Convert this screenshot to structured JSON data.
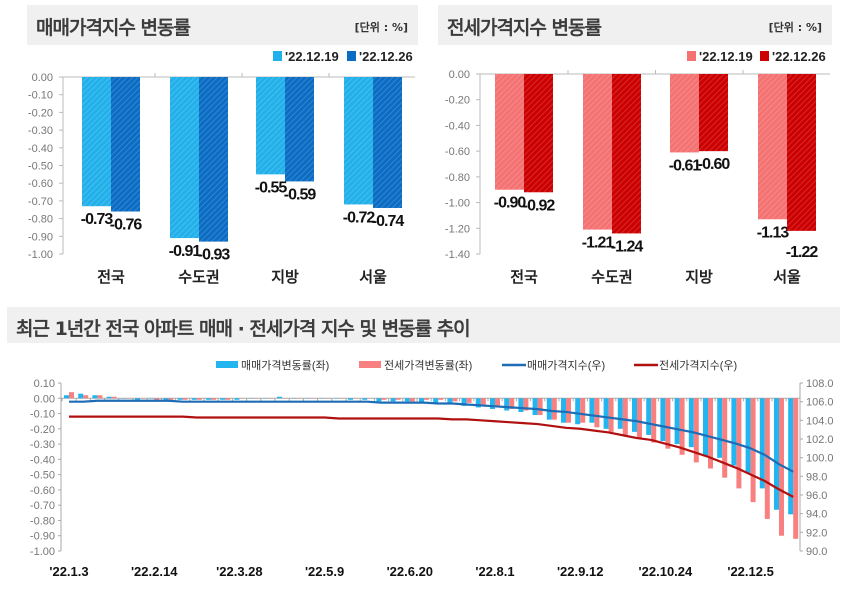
{
  "chart_data": [
    {
      "type": "bar",
      "title": "매매가격지수 변동률",
      "unit": "[단위 : %]",
      "categories": [
        "전국",
        "수도권",
        "지방",
        "서울"
      ],
      "series": [
        {
          "name": "'22.12.19",
          "values": [
            -0.73,
            -0.91,
            -0.55,
            -0.72
          ],
          "color": "#22b0ea"
        },
        {
          "name": "'22.12.26",
          "values": [
            -0.76,
            -0.93,
            -0.59,
            -0.74
          ],
          "color": "#0b6cc4"
        }
      ],
      "data_labels": [
        [
          "-0.73",
          "-0.91",
          "-0.55",
          "-0.72"
        ],
        [
          "-0.76",
          "-0.93",
          "-0.59",
          "-0.74"
        ]
      ],
      "ylim": [
        -1.0,
        0.0
      ],
      "yticks": [
        "0.00",
        "-0.10",
        "-0.20",
        "-0.30",
        "-0.40",
        "-0.50",
        "-0.60",
        "-0.70",
        "-0.80",
        "-0.90",
        "-1.00"
      ],
      "legend": "top-right",
      "grid": false
    },
    {
      "type": "bar",
      "title": "전세가격지수 변동률",
      "unit": "[단위 : %]",
      "categories": [
        "전국",
        "수도권",
        "지방",
        "서울"
      ],
      "series": [
        {
          "name": "'22.12.19",
          "values": [
            -0.9,
            -1.21,
            -0.61,
            -1.13
          ],
          "color": "#f47272"
        },
        {
          "name": "'22.12.26",
          "values": [
            -0.92,
            -1.24,
            -0.6,
            -1.22
          ],
          "color": "#cc0000"
        }
      ],
      "data_labels": [
        [
          "-0.90",
          "-1.21",
          "-0.61",
          "-1.13"
        ],
        [
          "-0.92",
          "-1.24",
          "-0.60",
          "-1.22"
        ]
      ],
      "ylim": [
        -1.4,
        0.0
      ],
      "yticks": [
        "0.00",
        "-0.20",
        "-0.40",
        "-0.60",
        "-0.80",
        "-1.00",
        "-1.20",
        "-1.40"
      ],
      "legend": "top-right",
      "grid": false
    },
    {
      "type": "bar+line",
      "title": "최근 1년간 전국 아파트 매매 · 전세가격 지수 및 변동률 추이",
      "x_ticklabels": [
        "'22.1.3",
        "'22.2.14",
        "'22.3.28",
        "'22.5.9",
        "'22.6.20",
        "'22.8.1",
        "'22.9.12",
        "'22.10.24",
        "'22.12.5"
      ],
      "x_tick_every_weeks": 6,
      "ylim_left": [
        -1.0,
        0.1
      ],
      "yticks_left": [
        "0.10",
        "0.00",
        "-0.10",
        "-0.20",
        "-0.30",
        "-0.40",
        "-0.50",
        "-0.60",
        "-0.70",
        "-0.80",
        "-0.90",
        "-1.00"
      ],
      "ylim_right": [
        90.0,
        108.0
      ],
      "yticks_right": [
        "108.0",
        "106.0",
        "104.0",
        "102.0",
        "100.0",
        "98.0",
        "96.0",
        "94.0",
        "92.0",
        "90.0"
      ],
      "legend": "top",
      "series": [
        {
          "name": "매매가격변동률(좌)",
          "type": "bar",
          "axis": "left",
          "color": "#22b5f0",
          "values": [
            0.02,
            0.03,
            0.02,
            0.01,
            0.0,
            -0.01,
            0.0,
            -0.01,
            -0.01,
            -0.01,
            -0.01,
            -0.01,
            -0.01,
            0.0,
            0.0,
            0.01,
            0.0,
            0.0,
            0.0,
            0.0,
            -0.01,
            -0.01,
            -0.02,
            -0.02,
            -0.02,
            -0.03,
            -0.03,
            -0.04,
            -0.05,
            -0.06,
            -0.07,
            -0.08,
            -0.09,
            -0.11,
            -0.14,
            -0.16,
            -0.17,
            -0.16,
            -0.2,
            -0.2,
            -0.22,
            -0.24,
            -0.28,
            -0.3,
            -0.32,
            -0.38,
            -0.39,
            -0.44,
            -0.49,
            -0.59,
            -0.73,
            -0.76
          ]
        },
        {
          "name": "전세가격변동률(좌)",
          "type": "bar",
          "axis": "left",
          "color": "#f88080",
          "values": [
            0.04,
            0.02,
            0.02,
            0.01,
            0.0,
            0.0,
            -0.01,
            -0.01,
            -0.01,
            -0.01,
            -0.01,
            -0.01,
            0.0,
            0.0,
            0.0,
            0.0,
            0.0,
            0.0,
            0.0,
            0.0,
            0.0,
            0.0,
            -0.01,
            -0.01,
            -0.02,
            -0.01,
            -0.01,
            -0.02,
            -0.03,
            -0.04,
            -0.05,
            -0.07,
            -0.08,
            -0.11,
            -0.14,
            -0.16,
            -0.16,
            -0.19,
            -0.22,
            -0.24,
            -0.26,
            -0.29,
            -0.33,
            -0.37,
            -0.42,
            -0.46,
            -0.52,
            -0.59,
            -0.68,
            -0.79,
            -0.9,
            -0.92
          ]
        },
        {
          "name": "매매가격지수(우)",
          "type": "line",
          "axis": "right",
          "color": "#1e6cb5",
          "values": [
            106.0,
            106.0,
            106.1,
            106.1,
            106.1,
            106.1,
            106.1,
            106.1,
            106.0,
            106.0,
            106.0,
            106.0,
            106.0,
            106.0,
            106.0,
            106.0,
            106.0,
            106.0,
            106.0,
            106.0,
            106.0,
            106.0,
            105.9,
            105.9,
            105.9,
            105.9,
            105.8,
            105.8,
            105.7,
            105.6,
            105.5,
            105.4,
            105.3,
            105.2,
            105.0,
            104.9,
            104.7,
            104.5,
            104.3,
            104.1,
            103.9,
            103.6,
            103.3,
            103.0,
            102.7,
            102.3,
            101.9,
            101.5,
            101.0,
            100.3,
            99.3,
            98.5
          ]
        },
        {
          "name": "전세가격지수(우)",
          "type": "line",
          "axis": "right",
          "color": "#b01010",
          "values": [
            104.4,
            104.4,
            104.4,
            104.4,
            104.4,
            104.4,
            104.4,
            104.4,
            104.4,
            104.3,
            104.3,
            104.3,
            104.3,
            104.3,
            104.3,
            104.3,
            104.3,
            104.3,
            104.3,
            104.2,
            104.2,
            104.2,
            104.2,
            104.2,
            104.2,
            104.2,
            104.2,
            104.1,
            104.1,
            104.0,
            103.9,
            103.8,
            103.7,
            103.6,
            103.4,
            103.2,
            103.1,
            102.9,
            102.7,
            102.4,
            102.1,
            101.9,
            101.5,
            101.1,
            100.6,
            100.1,
            99.5,
            98.9,
            98.2,
            97.5,
            96.6,
            95.8
          ]
        }
      ],
      "grid": false
    }
  ]
}
